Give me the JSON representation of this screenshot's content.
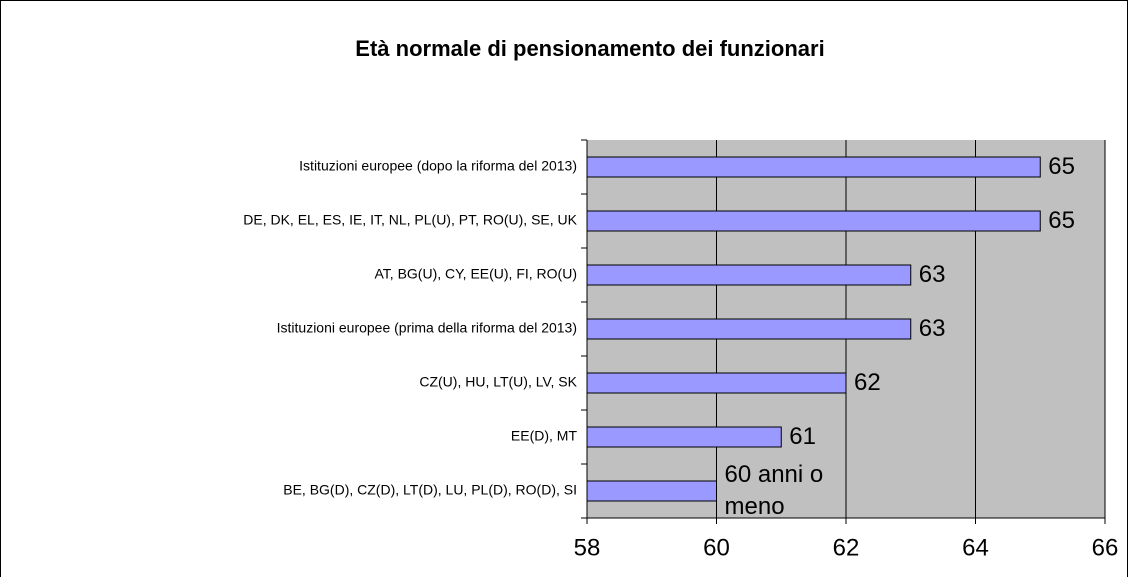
{
  "chart_data": {
    "type": "bar",
    "orientation": "horizontal",
    "title": "Età normale di pensionamento dei funzionari",
    "categories": [
      "Istituzioni europee (dopo la riforma del 2013)",
      "DE, DK, EL, ES, IE, IT, NL, PL(U), PT, RO(U), SE, UK",
      "AT, BG(U), CY, EE(U), FI, RO(U)",
      "Istituzioni europee (prima della riforma del 2013)",
      "CZ(U), HU, LT(U), LV, SK",
      "EE(D), MT",
      "BE, BG(D),  CZ(D), LT(D), LU, PL(D), RO(D), SI"
    ],
    "values": [
      65,
      65,
      63,
      63,
      62,
      61,
      60
    ],
    "value_labels": [
      "65",
      "65",
      "63",
      "63",
      "62",
      "61",
      "60 anni o meno"
    ],
    "color": "#9999ff",
    "xlim": [
      58,
      66
    ],
    "xticks": [
      58,
      60,
      62,
      64,
      66
    ],
    "grid": true
  }
}
